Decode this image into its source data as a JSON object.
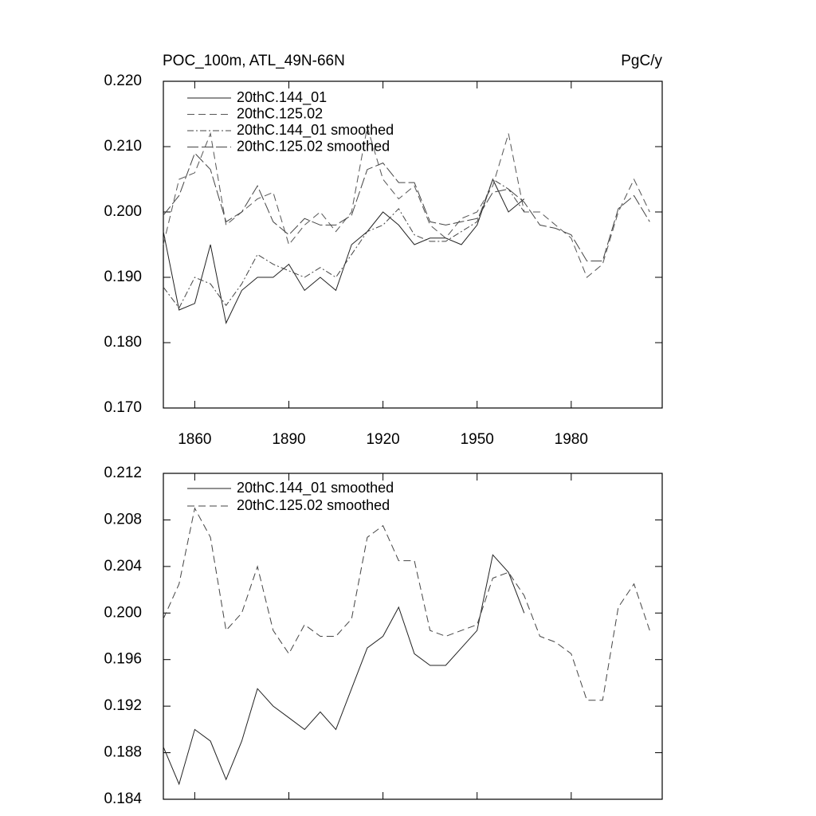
{
  "chart_data": [
    {
      "type": "line",
      "title": "POC_100m, ATL_49N-66N",
      "units": "PgC/y",
      "x": [
        1850,
        1855,
        1860,
        1865,
        1870,
        1875,
        1880,
        1885,
        1890,
        1895,
        1900,
        1905,
        1910,
        1915,
        1920,
        1925,
        1930,
        1935,
        1940,
        1945,
        1950,
        1955,
        1960,
        1965,
        1970,
        1975,
        1980,
        1985,
        1990,
        1995,
        2000,
        2005
      ],
      "xlim": [
        1850,
        2009
      ],
      "xticks": [
        1860,
        1890,
        1920,
        1950,
        1980
      ],
      "xtick_labels": true,
      "ylim": [
        0.17,
        0.22
      ],
      "yticks": [
        {
          "value": 0.17,
          "label": "0.170"
        },
        {
          "value": 0.18,
          "label": "0.180"
        },
        {
          "value": 0.19,
          "label": "0.190"
        },
        {
          "value": 0.2,
          "label": "0.200"
        },
        {
          "value": 0.21,
          "label": "0.210"
        },
        {
          "value": 0.22,
          "label": "0.220"
        }
      ],
      "series": [
        {
          "name": "20thC.144_01",
          "color": "#222222",
          "dash": "solid",
          "values": [
            0.197,
            0.185,
            0.186,
            0.195,
            0.183,
            0.188,
            0.19,
            0.19,
            0.192,
            0.188,
            0.19,
            0.188,
            0.195,
            0.197,
            0.2,
            0.198,
            0.195,
            0.196,
            0.196,
            0.195,
            0.198,
            0.205,
            0.2,
            0.202,
            null,
            null,
            null,
            null,
            null,
            null,
            null,
            null
          ]
        },
        {
          "name": "20thC.125.02",
          "color": "#555555",
          "dash": "dashed",
          "values": [
            0.195,
            0.205,
            0.206,
            0.212,
            0.198,
            0.2,
            0.202,
            0.203,
            0.195,
            0.198,
            0.2,
            0.197,
            0.2,
            0.213,
            0.205,
            0.202,
            0.204,
            0.198,
            0.196,
            0.199,
            0.2,
            0.204,
            0.212,
            0.2,
            0.2,
            0.198,
            0.196,
            0.19,
            0.192,
            0.2,
            0.205,
            0.2
          ]
        },
        {
          "name": "20thC.144_01 smoothed",
          "color": "#444444",
          "dash": "dashdot",
          "values": [
            0.1885,
            0.1853,
            0.19,
            0.189,
            0.1857,
            0.189,
            0.1935,
            0.192,
            0.191,
            0.19,
            0.1915,
            0.19,
            0.1935,
            0.197,
            0.198,
            0.2005,
            0.1965,
            0.1955,
            0.1955,
            0.197,
            0.1985,
            0.205,
            0.2035,
            0.2,
            null,
            null,
            null,
            null,
            null,
            null,
            null,
            null
          ]
        },
        {
          "name": "20thC.125.02 smoothed",
          "color": "#444444",
          "dash": "longdash",
          "values": [
            0.1995,
            0.2025,
            0.209,
            0.2065,
            0.1985,
            0.2,
            0.204,
            0.1985,
            0.1965,
            0.199,
            0.198,
            0.198,
            0.1995,
            0.2065,
            0.2075,
            0.2045,
            0.2045,
            0.1985,
            0.198,
            0.1985,
            0.199,
            0.203,
            0.2035,
            0.2015,
            0.198,
            0.1975,
            0.1965,
            0.1925,
            0.1925,
            0.2005,
            0.2025,
            0.1985
          ]
        }
      ]
    },
    {
      "type": "line",
      "x": [
        1850,
        1855,
        1860,
        1865,
        1870,
        1875,
        1880,
        1885,
        1890,
        1895,
        1900,
        1905,
        1910,
        1915,
        1920,
        1925,
        1930,
        1935,
        1940,
        1945,
        1950,
        1955,
        1960,
        1965,
        1970,
        1975,
        1980,
        1985,
        1990,
        1995,
        2000,
        2005
      ],
      "xlim": [
        1850,
        2009
      ],
      "xticks": [
        1860,
        1890,
        1920,
        1950,
        1980
      ],
      "xtick_labels": false,
      "ylim": [
        0.184,
        0.212
      ],
      "yticks": [
        0.184,
        0.188,
        0.192,
        0.196,
        {
          "value": 0.2,
          "label": "0.200"
        },
        0.204,
        0.208,
        0.212
      ],
      "series": [
        {
          "name": "20thC.144_01 smoothed",
          "color": "#222222",
          "dash": "solid",
          "values": [
            0.1885,
            0.1853,
            0.19,
            0.189,
            0.1857,
            0.189,
            0.1935,
            0.192,
            0.191,
            0.19,
            0.1915,
            0.19,
            0.1935,
            0.197,
            0.198,
            0.2005,
            0.1965,
            0.1955,
            0.1955,
            0.197,
            0.1985,
            0.205,
            0.2035,
            0.2,
            null,
            null,
            null,
            null,
            null,
            null,
            null,
            null
          ]
        },
        {
          "name": "20thC.125.02 smoothed",
          "color": "#444444",
          "dash": "dashed",
          "values": [
            0.1995,
            0.2025,
            0.209,
            0.2065,
            0.1985,
            0.2,
            0.204,
            0.1985,
            0.1965,
            0.199,
            0.198,
            0.198,
            0.1995,
            0.2065,
            0.2075,
            0.2045,
            0.2045,
            0.1985,
            0.198,
            0.1985,
            0.199,
            0.203,
            0.2035,
            0.2015,
            0.198,
            0.1975,
            0.1965,
            0.1925,
            0.1925,
            0.2005,
            0.2025,
            0.1985
          ]
        }
      ]
    }
  ]
}
